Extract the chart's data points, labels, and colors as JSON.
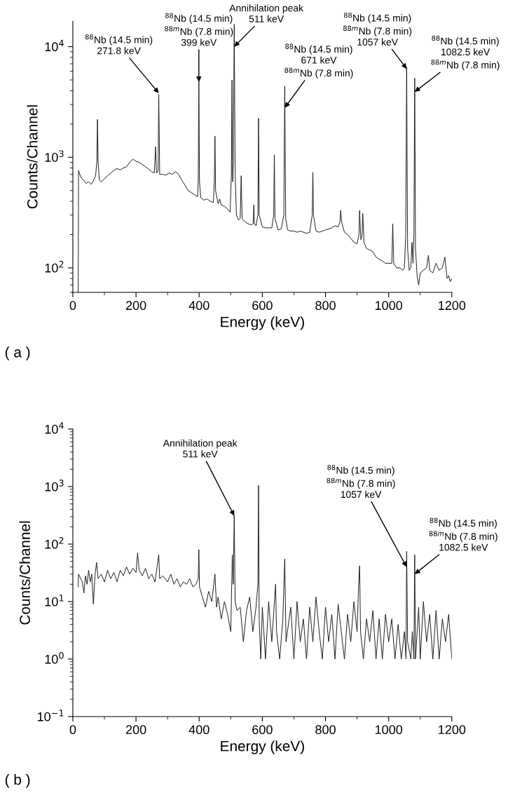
{
  "chart_data": [
    {
      "type": "line",
      "xlabel": "Energy (keV)",
      "ylabel": "Counts/Channel",
      "log": "y",
      "grid": false,
      "marker": "none",
      "line_style": "solid",
      "xlim": [
        0,
        1200
      ],
      "xticks": [
        0,
        200,
        400,
        600,
        800,
        1000,
        1200
      ],
      "ylim": [
        60,
        17000
      ],
      "yticks": [
        {
          "value": 100,
          "label": "10$^{2}$"
        },
        {
          "value": 1000,
          "label": "10$^{3}$"
        },
        {
          "value": 10000,
          "label": "10$^{4}$"
        }
      ],
      "series": [
        {
          "color": "#1a1a1a",
          "x": [
            17,
            18,
            22,
            28,
            35,
            42,
            50,
            58,
            65,
            72,
            76,
            78,
            80,
            84,
            90,
            100,
            110,
            120,
            130,
            140,
            150,
            160,
            170,
            180,
            190,
            200,
            210,
            220,
            230,
            240,
            250,
            258,
            262,
            265,
            270,
            272,
            275,
            285,
            295,
            305,
            315,
            325,
            335,
            345,
            355,
            365,
            375,
            385,
            395,
            397,
            399,
            401,
            405,
            415,
            425,
            435,
            445,
            448,
            450,
            452,
            460,
            465,
            470,
            480,
            490,
            498,
            502,
            504,
            506,
            508,
            511,
            514,
            518,
            525,
            530,
            533,
            536,
            545,
            555,
            565,
            571,
            573,
            575,
            580,
            586,
            588,
            590,
            600,
            610,
            620,
            630,
            636,
            638,
            640,
            650,
            660,
            668,
            671,
            674,
            680,
            690,
            700,
            710,
            720,
            730,
            740,
            750,
            758,
            760,
            762,
            770,
            780,
            790,
            800,
            810,
            820,
            830,
            840,
            846,
            848,
            851,
            860,
            870,
            880,
            890,
            900,
            906,
            908,
            912,
            916,
            918,
            922,
            930,
            940,
            950,
            960,
            970,
            980,
            990,
            1000,
            1010,
            1013,
            1016,
            1025,
            1035,
            1045,
            1050,
            1054,
            1057,
            1060,
            1065,
            1070,
            1074,
            1077,
            1080,
            1082.5,
            1085,
            1090,
            1095,
            1100,
            1110,
            1120,
            1126,
            1130,
            1140,
            1150,
            1160,
            1170,
            1178,
            1185,
            1190,
            1195,
            1200
          ],
          "values": [
            60,
            760,
            700,
            640,
            620,
            580,
            600,
            570,
            610,
            680,
            900,
            2200,
            900,
            620,
            600,
            640,
            680,
            720,
            760,
            790,
            770,
            800,
            820,
            900,
            960,
            920,
            900,
            860,
            820,
            780,
            740,
            720,
            1250,
            720,
            750,
            3700,
            700,
            700,
            690,
            720,
            700,
            740,
            700,
            620,
            560,
            500,
            480,
            460,
            440,
            600,
            5000,
            600,
            430,
            410,
            420,
            400,
            390,
            600,
            1550,
            500,
            380,
            420,
            370,
            360,
            340,
            320,
            700,
            5000,
            600,
            900,
            16000,
            700,
            300,
            270,
            280,
            680,
            280,
            260,
            250,
            245,
            250,
            370,
            250,
            240,
            300,
            2250,
            300,
            235,
            230,
            230,
            230,
            300,
            1050,
            280,
            220,
            225,
            300,
            4400,
            280,
            220,
            215,
            215,
            210,
            215,
            210,
            205,
            210,
            300,
            730,
            300,
            215,
            210,
            215,
            220,
            225,
            230,
            240,
            235,
            260,
            330,
            260,
            210,
            200,
            185,
            170,
            165,
            200,
            330,
            180,
            200,
            310,
            170,
            150,
            145,
            140,
            125,
            120,
            115,
            110,
            110,
            110,
            250,
            110,
            100,
            100,
            95,
            100,
            200,
            6500,
            150,
            95,
            100,
            170,
            110,
            200,
            5200,
            150,
            85,
            70,
            90,
            95,
            100,
            130,
            95,
            90,
            110,
            95,
            100,
            125,
            80,
            85,
            75,
            80
          ]
        }
      ],
      "annotations": [
        {
          "text": "$^{88}$Nb (14.5 min)\n271.8 keV",
          "x": 272,
          "y": 3800
        },
        {
          "text": "$^{88}$Nb (14.5 min)\n$^{88m}$Nb (7.8 min)\n399 keV",
          "x": 399,
          "y": 4800
        },
        {
          "text": "Annihilation peak\n511 keV",
          "x": 511,
          "y": 10000
        },
        {
          "text": "$^{88}$Nb (14.5 min)\n$^{88m}$Nb (7.8 min)\n1057 keV",
          "x": 1057,
          "y": 6300
        },
        {
          "text": "$^{88}$Nb (14.5 min)\n671 keV\n$^{88m}$Nb (7.8 min)",
          "x": 671,
          "y": 2800
        },
        {
          "text": "$^{88}$Nb (14.5 min)\n1082.5 keV\n$^{88m}$Nb (7.8 min)",
          "x": 1082.5,
          "y": 3900
        },
        "( a )"
      ]
    },
    {
      "type": "line",
      "xlabel": "Energy (keV)",
      "ylabel": "Counts/Channel",
      "log": "y",
      "grid": false,
      "marker": "none",
      "line_style": "solid",
      "xlim": [
        0,
        1200
      ],
      "xticks": [
        0,
        200,
        400,
        600,
        800,
        1000,
        1200
      ],
      "ylim": [
        0.1,
        10000
      ],
      "yticks": [
        {
          "value": 0.1,
          "label": "10$^{−1}$"
        },
        {
          "value": 1,
          "label": "10$^{0}$"
        },
        {
          "value": 10,
          "label": "10$^{1}$"
        },
        {
          "value": 100,
          "label": "10$^{2}$"
        },
        {
          "value": 1000,
          "label": "10$^{3}$"
        },
        {
          "value": 10000,
          "label": "10$^{4}$"
        }
      ],
      "series": [
        {
          "color": "#1a1a1a",
          "x": [
            17,
            18,
            25,
            30,
            35,
            40,
            45,
            50,
            55,
            60,
            65,
            70,
            75,
            80,
            90,
            100,
            110,
            120,
            130,
            140,
            150,
            160,
            170,
            180,
            190,
            200,
            205,
            210,
            220,
            230,
            240,
            250,
            260,
            272,
            275,
            285,
            300,
            310,
            320,
            330,
            340,
            350,
            360,
            370,
            380,
            390,
            397,
            399,
            401,
            410,
            420,
            430,
            440,
            450,
            455,
            460,
            470,
            480,
            490,
            500,
            505,
            508,
            511,
            514,
            520,
            530,
            540,
            550,
            560,
            570,
            580,
            586,
            588,
            590,
            595,
            600,
            610,
            620,
            630,
            642,
            645,
            655,
            665,
            671,
            675,
            690,
            700,
            710,
            720,
            730,
            740,
            750,
            760,
            770,
            780,
            790,
            800,
            810,
            820,
            830,
            840,
            850,
            860,
            870,
            880,
            890,
            900,
            905,
            908,
            911,
            920,
            930,
            940,
            950,
            960,
            970,
            980,
            990,
            1000,
            1010,
            1020,
            1030,
            1040,
            1050,
            1055,
            1057,
            1060,
            1070,
            1075,
            1080,
            1082.5,
            1085,
            1095,
            1100,
            1110,
            1120,
            1130,
            1140,
            1150,
            1160,
            1170,
            1180,
            1190,
            1200
          ],
          "values": [
            18,
            30,
            25,
            22,
            14,
            28,
            20,
            35,
            22,
            30,
            9,
            28,
            48,
            25,
            30,
            22,
            35,
            25,
            32,
            22,
            35,
            28,
            40,
            30,
            38,
            32,
            70,
            35,
            28,
            38,
            25,
            30,
            22,
            65,
            25,
            28,
            22,
            30,
            20,
            25,
            18,
            22,
            20,
            25,
            18,
            20,
            25,
            80,
            18,
            12,
            8,
            15,
            10,
            30,
            8,
            12,
            5,
            10,
            6,
            3,
            65,
            20,
            320,
            10,
            7,
            8,
            2,
            7,
            12,
            3,
            8,
            20,
            1050,
            5,
            1,
            8,
            1,
            10,
            2,
            20,
            3,
            1,
            5,
            55,
            2,
            8,
            1,
            10,
            2,
            5,
            1,
            8,
            2,
            12,
            3,
            1,
            8,
            2,
            6,
            1,
            9,
            3,
            1,
            6,
            2,
            10,
            3,
            20,
            42,
            3,
            1,
            5,
            2,
            7,
            1,
            5,
            1,
            6,
            2,
            5,
            1,
            4,
            1,
            3,
            1,
            75,
            2,
            1,
            3,
            1,
            65,
            1,
            8,
            1,
            10,
            2,
            6,
            1,
            7,
            1,
            5,
            2,
            6,
            1
          ]
        }
      ],
      "annotations": [
        {
          "text": "Annihilation peak\n511 keV",
          "x": 511,
          "y": 310
        },
        {
          "text": "$^{88}$Nb (14.5 min)\n$^{88m}$Nb (7.8 min)\n1057 keV",
          "x": 1057,
          "y": 40
        },
        {
          "text": "$^{88}$Nb (14.5 min)\n$^{88m}$Nb (7.8 min)\n1082.5 keV",
          "x": 1082.5,
          "y": 30
        },
        "( b )"
      ]
    }
  ]
}
